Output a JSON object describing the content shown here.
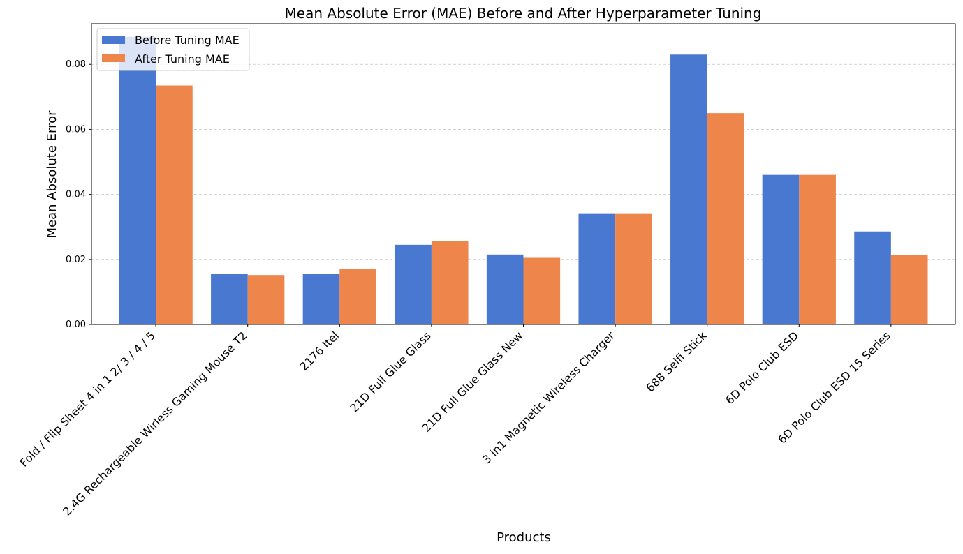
{
  "chart_data": {
    "type": "bar",
    "title": "Mean Absolute Error (MAE) Before and After Hyperparameter Tuning",
    "xlabel": "Products",
    "ylabel": "Mean Absolute Error",
    "categories": [
      "Fold / Flip Sheet 4 in 1 2/ 3 / 4 / 5",
      "2.4G Rechargeable Wirless Gaming Mouse T2",
      "2176 Itel",
      "21D Full Glue Glass",
      "21D Full Glue Glass New",
      "3 in1 Magnetic Wireless Charger",
      "688 Selfi Stick",
      "6D Polo Club ESD",
      "6D Polo Club ESD 15 Series"
    ],
    "series": [
      {
        "name": "Before Tuning MAE",
        "color": "#4878cf",
        "values": [
          0.0885,
          0.0155,
          0.0155,
          0.0245,
          0.0215,
          0.0342,
          0.083,
          0.046,
          0.0286
        ]
      },
      {
        "name": "After Tuning MAE",
        "color": "#ee854a",
        "values": [
          0.0735,
          0.0152,
          0.0171,
          0.0256,
          0.0205,
          0.0342,
          0.065,
          0.046,
          0.0213
        ]
      }
    ],
    "ylim": [
      0,
      0.0925
    ],
    "yticks": [
      "0.00",
      "0.02",
      "0.04",
      "0.06",
      "0.08"
    ],
    "ytick_values": [
      0,
      0.02,
      0.04,
      0.06,
      0.08
    ],
    "grid": "y-axis dashed",
    "legend_position": "top-left"
  }
}
